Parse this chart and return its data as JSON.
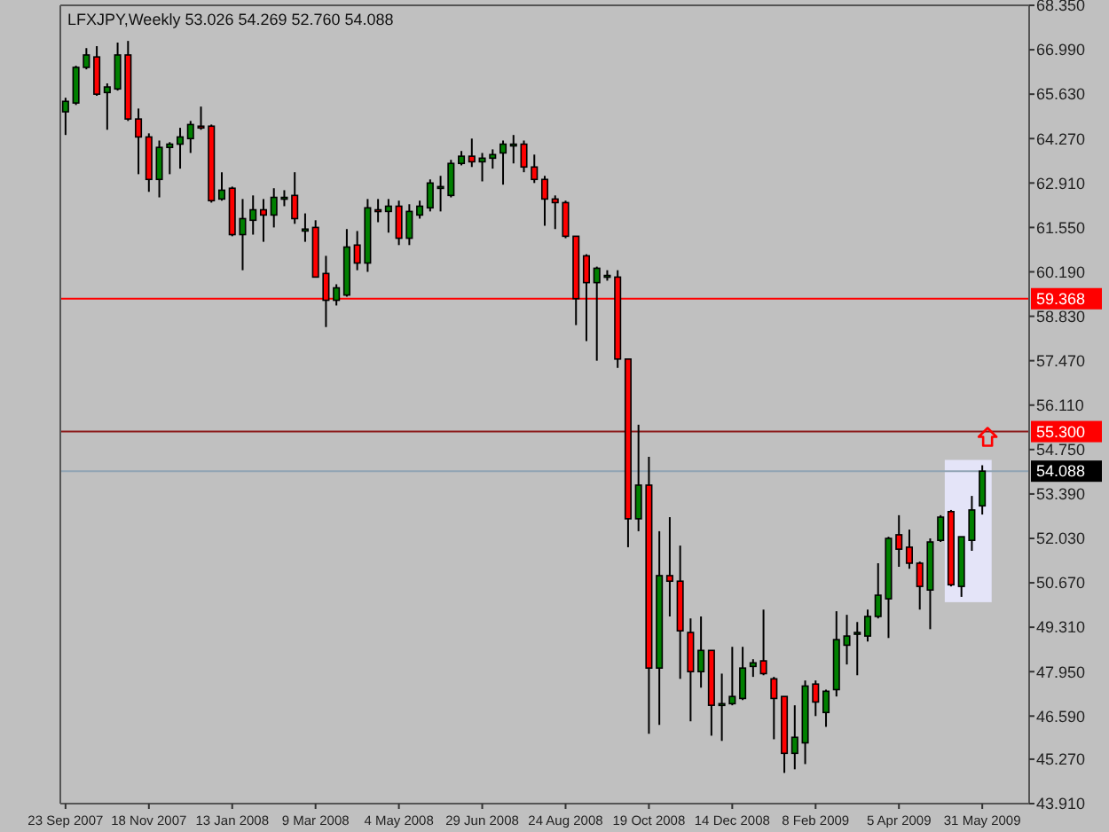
{
  "chart_data": {
    "type": "candlestick",
    "title": "LFXJPY,Weekly  53.026 54.269 52.760 54.088",
    "categories": [
      "23 Sep 2007",
      null,
      null,
      null,
      null,
      null,
      null,
      null,
      "18 Nov 2007",
      null,
      null,
      null,
      null,
      null,
      null,
      null,
      "13 Jan 2008",
      null,
      null,
      null,
      null,
      null,
      null,
      null,
      "9 Mar 2008",
      null,
      null,
      null,
      null,
      null,
      null,
      null,
      "4 May 2008",
      null,
      null,
      null,
      null,
      null,
      null,
      null,
      "29 Jun 2008",
      null,
      null,
      null,
      null,
      null,
      null,
      null,
      "24 Aug 2008",
      null,
      null,
      null,
      null,
      null,
      null,
      null,
      "19 Oct 2008",
      null,
      null,
      null,
      null,
      null,
      null,
      null,
      "14 Dec 2008",
      null,
      null,
      null,
      null,
      null,
      null,
      null,
      "8 Feb 2009",
      null,
      null,
      null,
      null,
      null,
      null,
      null,
      "5 Apr 2009",
      null,
      null,
      null,
      null,
      null,
      null,
      null,
      "31 May 2009"
    ],
    "ohlc": [
      [
        65.09,
        65.52,
        64.38,
        65.41
      ],
      [
        65.36,
        66.5,
        65.3,
        66.45
      ],
      [
        66.45,
        67.04,
        66.39,
        66.83
      ],
      [
        66.77,
        67.1,
        65.58,
        65.63
      ],
      [
        65.68,
        65.96,
        64.54,
        65.85
      ],
      [
        65.79,
        67.21,
        65.74,
        66.83
      ],
      [
        66.83,
        67.26,
        64.81,
        64.87
      ],
      [
        64.87,
        65.19,
        63.18,
        64.32
      ],
      [
        64.32,
        64.43,
        62.64,
        63.02
      ],
      [
        63.02,
        64.21,
        62.47,
        64.0
      ],
      [
        64.0,
        64.16,
        63.18,
        64.1
      ],
      [
        64.1,
        64.6,
        63.35,
        64.32
      ],
      [
        64.27,
        64.81,
        63.83,
        64.7
      ],
      [
        64.65,
        65.25,
        64.54,
        64.6
      ],
      [
        64.65,
        64.7,
        62.31,
        62.37
      ],
      [
        62.42,
        63.24,
        62.37,
        62.69
      ],
      [
        62.75,
        62.8,
        61.28,
        61.33
      ],
      [
        61.33,
        62.42,
        60.24,
        61.82
      ],
      [
        61.77,
        62.53,
        61.33,
        62.09
      ],
      [
        62.09,
        62.42,
        61.11,
        61.93
      ],
      [
        61.93,
        62.75,
        61.55,
        62.47
      ],
      [
        62.47,
        62.69,
        62.2,
        62.47
      ],
      [
        62.53,
        63.24,
        61.66,
        61.82
      ],
      [
        61.44,
        61.98,
        61.11,
        61.5
      ],
      [
        61.55,
        61.77,
        60.03,
        60.03
      ],
      [
        60.14,
        60.68,
        58.5,
        59.32
      ],
      [
        59.32,
        59.81,
        59.16,
        59.7
      ],
      [
        59.48,
        61.5,
        59.43,
        60.95
      ],
      [
        61.01,
        61.44,
        60.24,
        60.46
      ],
      [
        60.46,
        62.42,
        60.19,
        62.15
      ],
      [
        62.09,
        62.42,
        61.71,
        62.04
      ],
      [
        62.04,
        62.42,
        61.39,
        62.2
      ],
      [
        62.2,
        62.37,
        61.01,
        61.22
      ],
      [
        61.22,
        62.26,
        61.01,
        62.04
      ],
      [
        61.93,
        62.37,
        61.82,
        62.2
      ],
      [
        62.15,
        63.02,
        62.04,
        62.91
      ],
      [
        62.8,
        63.13,
        62.04,
        62.8
      ],
      [
        62.53,
        63.62,
        62.47,
        63.51
      ],
      [
        63.51,
        63.89,
        63.45,
        63.73
      ],
      [
        63.73,
        64.27,
        63.4,
        63.56
      ],
      [
        63.56,
        63.83,
        62.96,
        63.67
      ],
      [
        63.67,
        63.94,
        63.35,
        63.78
      ],
      [
        63.83,
        64.21,
        62.86,
        64.1
      ],
      [
        64.1,
        64.38,
        63.51,
        64.1
      ],
      [
        64.1,
        64.21,
        63.24,
        63.4
      ],
      [
        63.4,
        63.78,
        62.91,
        63.02
      ],
      [
        63.02,
        63.13,
        61.6,
        62.42
      ],
      [
        62.42,
        62.53,
        61.5,
        62.31
      ],
      [
        62.31,
        62.37,
        61.22,
        61.28
      ],
      [
        61.28,
        61.28,
        58.56,
        59.37
      ],
      [
        60.68,
        60.73,
        58.07,
        59.86
      ],
      [
        59.86,
        60.35,
        57.47,
        60.3
      ],
      [
        60.08,
        60.24,
        59.92,
        60.08
      ],
      [
        60.03,
        60.24,
        57.25,
        57.52
      ],
      [
        57.52,
        57.52,
        51.76,
        52.63
      ],
      [
        52.63,
        55.51,
        52.25,
        53.66
      ],
      [
        53.66,
        54.53,
        46.05,
        48.06
      ],
      [
        48.06,
        52.25,
        46.32,
        50.89
      ],
      [
        50.89,
        52.68,
        49.64,
        50.72
      ],
      [
        50.72,
        51.81,
        47.73,
        49.2
      ],
      [
        49.15,
        49.58,
        46.43,
        47.95
      ],
      [
        47.95,
        49.64,
        47.46,
        48.6
      ],
      [
        48.6,
        48.6,
        45.99,
        46.92
      ],
      [
        46.97,
        47.89,
        45.83,
        46.97
      ],
      [
        46.97,
        48.71,
        46.92,
        47.19
      ],
      [
        47.13,
        48.71,
        47.08,
        48.06
      ],
      [
        48.11,
        48.33,
        47.79,
        48.22
      ],
      [
        48.28,
        49.85,
        47.84,
        47.89
      ],
      [
        47.73,
        47.79,
        45.88,
        47.13
      ],
      [
        47.19,
        47.19,
        44.85,
        45.45
      ],
      [
        45.45,
        46.92,
        44.96,
        45.94
      ],
      [
        45.77,
        47.68,
        45.12,
        47.51
      ],
      [
        47.57,
        47.68,
        46.59,
        47.02
      ],
      [
        46.7,
        47.4,
        46.26,
        47.35
      ],
      [
        47.4,
        49.8,
        47.19,
        48.93
      ],
      [
        48.76,
        49.69,
        48.17,
        49.04
      ],
      [
        49.15,
        49.47,
        47.84,
        49.15
      ],
      [
        49.04,
        49.85,
        48.87,
        49.64
      ],
      [
        49.64,
        51.27,
        49.58,
        50.29
      ],
      [
        50.18,
        52.08,
        48.98,
        52.03
      ],
      [
        52.14,
        52.74,
        51.16,
        51.7
      ],
      [
        51.76,
        52.3,
        51.1,
        51.27
      ],
      [
        51.27,
        51.32,
        49.85,
        50.56
      ],
      [
        50.45,
        52.03,
        49.25,
        51.92
      ],
      [
        51.97,
        52.74,
        51.92,
        52.68
      ],
      [
        52.85,
        52.9,
        50.56,
        50.61
      ],
      [
        50.56,
        52.08,
        50.24,
        52.08
      ],
      [
        51.97,
        53.33,
        51.65,
        52.9
      ],
      [
        53.026,
        54.269,
        52.76,
        54.088
      ]
    ],
    "ylim": [
      43.91,
      68.35
    ],
    "yticks": [
      {
        "value": 68.35,
        "label": "68.350"
      },
      {
        "value": 66.99,
        "label": "66.990"
      },
      {
        "value": 65.63,
        "label": "65.630"
      },
      {
        "value": 64.27,
        "label": "64.270"
      },
      {
        "value": 62.91,
        "label": "62.910"
      },
      {
        "value": 61.55,
        "label": "61.550"
      },
      {
        "value": 60.19,
        "label": "60.190"
      },
      {
        "value": 58.83,
        "label": "58.830"
      },
      {
        "value": 57.47,
        "label": "57.470"
      },
      {
        "value": 56.11,
        "label": "56.110"
      },
      {
        "value": 54.75,
        "label": "54.750"
      },
      {
        "value": 53.39,
        "label": "53.390"
      },
      {
        "value": 52.03,
        "label": "52.030"
      },
      {
        "value": 50.67,
        "label": "50.670"
      },
      {
        "value": 49.31,
        "label": "49.310"
      },
      {
        "value": 47.95,
        "label": "47.950"
      },
      {
        "value": 46.59,
        "label": "46.590"
      },
      {
        "value": 45.27,
        "label": "45.270"
      },
      {
        "value": 43.91,
        "label": "43.910"
      }
    ],
    "ref_lines": [
      {
        "axis": "y",
        "value": 59.368,
        "label": "59.368",
        "color": "#ff0000"
      },
      {
        "axis": "y",
        "value": 55.3,
        "label": "55.300",
        "color": "#8b1a1a"
      },
      {
        "axis": "y",
        "value": 54.088,
        "label": "54.088",
        "color": "#8fa3b3"
      }
    ],
    "grid": false
  }
}
